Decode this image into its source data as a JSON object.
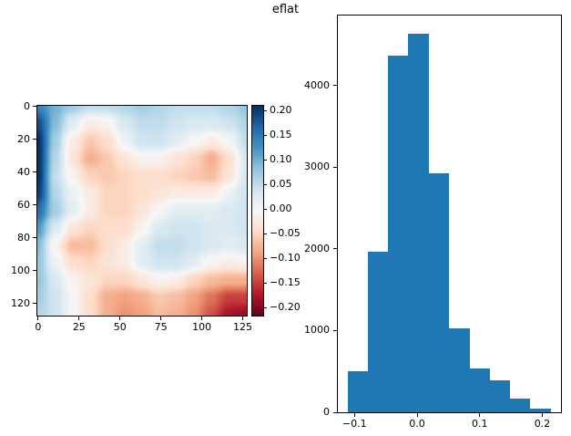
{
  "figure": {
    "suptitle": "eflat",
    "background": "#ffffff"
  },
  "chart_data": [
    {
      "type": "heatmap",
      "name": "eflat-field-image",
      "colormap": "RdBu",
      "size": 128,
      "vmin": -0.216,
      "vmax": 0.21,
      "x_ticks": [
        0,
        25,
        50,
        75,
        100,
        125
      ],
      "x_tick_labels": [
        "0",
        "25",
        "50",
        "75",
        "100",
        "125"
      ],
      "y_ticks": [
        0,
        20,
        40,
        60,
        80,
        100,
        120
      ],
      "y_tick_labels": [
        "0",
        "20",
        "40",
        "60",
        "80",
        "100",
        "120"
      ],
      "values": [
        [
          0.14,
          0.1,
          0.07,
          0.05,
          0.05,
          0.06,
          0.07,
          0.06,
          0.05,
          0.05,
          0.05,
          0.06,
          0.08
        ],
        [
          0.19,
          0.09,
          0.02,
          -0.02,
          -0.01,
          0.03,
          0.05,
          0.05,
          0.04,
          0.03,
          0.03,
          0.04,
          0.06
        ],
        [
          0.21,
          0.07,
          -0.02,
          -0.06,
          -0.04,
          0.01,
          0.04,
          0.04,
          0.02,
          0.0,
          -0.02,
          0.0,
          0.05
        ],
        [
          0.21,
          0.06,
          -0.03,
          -0.08,
          -0.06,
          -0.03,
          -0.01,
          -0.01,
          -0.03,
          -0.05,
          -0.08,
          -0.04,
          0.03
        ],
        [
          0.21,
          0.05,
          -0.01,
          -0.05,
          -0.06,
          -0.05,
          -0.04,
          -0.04,
          -0.05,
          -0.06,
          -0.07,
          -0.03,
          0.03
        ],
        [
          0.2,
          0.06,
          0.01,
          -0.02,
          -0.05,
          -0.05,
          -0.04,
          -0.03,
          -0.02,
          -0.02,
          -0.02,
          0.01,
          0.04
        ],
        [
          0.16,
          0.07,
          0.02,
          -0.02,
          -0.05,
          -0.05,
          -0.03,
          0.0,
          0.02,
          0.02,
          0.02,
          0.03,
          0.04
        ],
        [
          0.12,
          0.03,
          -0.03,
          -0.05,
          -0.04,
          -0.04,
          -0.01,
          0.03,
          0.04,
          0.04,
          0.03,
          0.03,
          0.04
        ],
        [
          0.09,
          -0.01,
          -0.07,
          -0.07,
          -0.04,
          -0.02,
          0.02,
          0.05,
          0.05,
          0.04,
          0.03,
          0.02,
          0.03
        ],
        [
          0.08,
          0.01,
          -0.04,
          -0.05,
          -0.03,
          -0.02,
          0.02,
          0.04,
          0.04,
          0.02,
          -0.01,
          -0.02,
          -0.01
        ],
        [
          0.08,
          0.03,
          -0.01,
          -0.03,
          -0.05,
          -0.05,
          -0.03,
          -0.01,
          -0.02,
          -0.05,
          -0.07,
          -0.08,
          -0.08
        ],
        [
          0.07,
          0.04,
          0.0,
          -0.04,
          -0.08,
          -0.09,
          -0.08,
          -0.06,
          -0.07,
          -0.09,
          -0.12,
          -0.15,
          -0.15
        ],
        [
          0.06,
          0.04,
          0.0,
          -0.04,
          -0.08,
          -0.1,
          -0.09,
          -0.07,
          -0.08,
          -0.1,
          -0.14,
          -0.18,
          -0.19
        ]
      ],
      "colorbar": {
        "ticks": [
          0.2,
          0.15,
          0.1,
          0.05,
          0.0,
          -0.05,
          -0.1,
          -0.15,
          -0.2
        ],
        "tick_labels": [
          "0.20",
          "0.15",
          "0.10",
          "0.05",
          "0.00",
          "−0.05",
          "−0.10",
          "−0.15",
          "−0.20"
        ]
      }
    },
    {
      "type": "histogram",
      "name": "eflat-histogram",
      "color": "#1f77b4",
      "bin_edges": [
        -0.111,
        -0.079,
        -0.046,
        -0.014,
        0.019,
        0.051,
        0.084,
        0.116,
        0.149,
        0.181,
        0.214
      ],
      "counts": [
        500,
        1960,
        4370,
        4630,
        2930,
        1030,
        540,
        390,
        170,
        40
      ],
      "xlim": [
        -0.1266,
        0.2299
      ],
      "ylim": [
        0,
        4856
      ],
      "x_ticks": [
        -0.1,
        0.0,
        0.1,
        0.2
      ],
      "x_tick_labels": [
        "−0.1",
        "0.0",
        "0.1",
        "0.2"
      ],
      "y_ticks": [
        0,
        1000,
        2000,
        3000,
        4000
      ],
      "y_tick_labels": [
        "0",
        "1000",
        "2000",
        "3000",
        "4000"
      ]
    }
  ]
}
